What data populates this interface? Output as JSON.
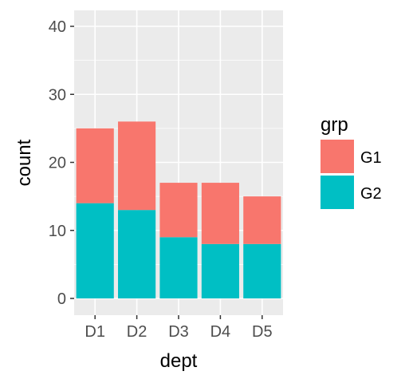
{
  "chart_data": {
    "type": "bar",
    "stacked": true,
    "xlabel": "dept",
    "ylabel": "count",
    "categories": [
      "D1",
      "D2",
      "D3",
      "D4",
      "D5"
    ],
    "series": [
      {
        "name": "G1",
        "values": [
          11,
          13,
          8,
          9,
          7
        ]
      },
      {
        "name": "G2",
        "values": [
          14,
          13,
          9,
          8,
          8
        ]
      }
    ],
    "ylim": [
      0,
      40
    ],
    "yticks": [
      0,
      10,
      20,
      30,
      40
    ],
    "grid": true,
    "legend": {
      "title": "grp",
      "placement": "right",
      "entries": [
        "G1",
        "G2"
      ]
    },
    "colors": {
      "G1": "#F8766D",
      "G2": "#00BFC4",
      "panel": "#EBEBEB",
      "grid": "#FFFFFF",
      "axis_text": "#4D4D4D"
    }
  }
}
